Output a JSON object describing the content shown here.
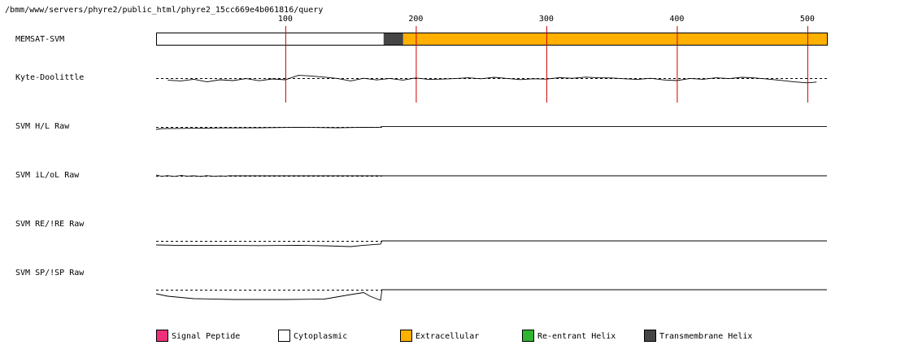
{
  "path_title": "/bmm/www/servers/phyre2/public_html/phyre2_15cc669e4b061816/query",
  "chart_data": {
    "type": "line",
    "title": "",
    "xlabel": "",
    "ylabel": "",
    "sequence_length": 515,
    "xlim": [
      1,
      515
    ],
    "tick_labels": [
      100,
      200,
      300,
      400,
      500
    ],
    "grid": true,
    "grid_color": "#cc0000",
    "tracks": [
      {
        "label": "MEMSAT-SVM",
        "kind": "topology",
        "segments": [
          {
            "start": 1,
            "end": 175,
            "class": "Cytoplasmic"
          },
          {
            "start": 175,
            "end": 190,
            "class": "Transmembrane Helix"
          },
          {
            "start": 190,
            "end": 515,
            "class": "Extracellular"
          }
        ]
      },
      {
        "label": "Kyte-Doolittle",
        "kind": "profile",
        "x_range": [
          10,
          507
        ],
        "points": [
          [
            10,
            2.6
          ],
          [
            20,
            3.4
          ],
          [
            30,
            1.4
          ],
          [
            40,
            4.6
          ],
          [
            50,
            2.0
          ],
          [
            60,
            3.0
          ],
          [
            70,
            0.6
          ],
          [
            80,
            3.2
          ],
          [
            90,
            1.0
          ],
          [
            100,
            2.0
          ],
          [
            110,
            -3.4
          ],
          [
            120,
            -2.6
          ],
          [
            130,
            -1.2
          ],
          [
            140,
            0.4
          ],
          [
            150,
            3.4
          ],
          [
            160,
            0.2
          ],
          [
            170,
            2.2
          ],
          [
            180,
            0.4
          ],
          [
            190,
            2.4
          ],
          [
            200,
            -0.2
          ],
          [
            210,
            1.6
          ],
          [
            220,
            1.2
          ],
          [
            230,
            0.6
          ],
          [
            240,
            -0.4
          ],
          [
            250,
            0.8
          ],
          [
            260,
            -1.0
          ],
          [
            270,
            0.4
          ],
          [
            280,
            1.8
          ],
          [
            290,
            0.8
          ],
          [
            300,
            1.2
          ],
          [
            310,
            -0.6
          ],
          [
            320,
            0.2
          ],
          [
            330,
            -1.2
          ],
          [
            340,
            -0.4
          ],
          [
            350,
            -0.2
          ],
          [
            360,
            0.8
          ],
          [
            370,
            1.6
          ],
          [
            380,
            0.2
          ],
          [
            390,
            2.2
          ],
          [
            400,
            3.0
          ],
          [
            410,
            0.4
          ],
          [
            420,
            1.4
          ],
          [
            430,
            -0.4
          ],
          [
            440,
            0.6
          ],
          [
            450,
            -1.0
          ],
          [
            460,
            -0.2
          ],
          [
            470,
            1.2
          ],
          [
            480,
            2.8
          ],
          [
            490,
            4.6
          ],
          [
            500,
            5.8
          ],
          [
            507,
            4.8
          ]
        ]
      },
      {
        "label": "SVM H/L Raw",
        "kind": "profile",
        "x_range": [
          1,
          515
        ],
        "points": [
          [
            1,
            3.0
          ],
          [
            5,
            2.0
          ],
          [
            20,
            1.8
          ],
          [
            50,
            1.2
          ],
          [
            80,
            1.0
          ],
          [
            110,
            0.4
          ],
          [
            140,
            1.0
          ],
          [
            160,
            0.4
          ],
          [
            172,
            0.6
          ],
          [
            174,
            -0.4
          ],
          [
            515,
            -0.4
          ]
        ]
      },
      {
        "label": "SVM iL/oL Raw",
        "kind": "profile",
        "x_range": [
          1,
          515
        ],
        "points": [
          [
            1,
            -1.0
          ],
          [
            5,
            0.6
          ],
          [
            10,
            -0.2
          ],
          [
            15,
            0.8
          ],
          [
            20,
            -0.4
          ],
          [
            25,
            0.4
          ],
          [
            30,
            0.0
          ],
          [
            35,
            0.8
          ],
          [
            40,
            -0.2
          ],
          [
            45,
            0.6
          ],
          [
            50,
            0.2
          ],
          [
            55,
            0.4
          ],
          [
            56,
            0.0
          ],
          [
            515,
            0.0
          ]
        ]
      },
      {
        "label": "SVM RE/!RE Raw",
        "kind": "profile",
        "x_range": [
          1,
          515
        ],
        "points": [
          [
            1,
            5.0
          ],
          [
            20,
            5.6
          ],
          [
            50,
            5.4
          ],
          [
            80,
            5.8
          ],
          [
            110,
            5.4
          ],
          [
            130,
            6.0
          ],
          [
            150,
            7.0
          ],
          [
            160,
            5.4
          ],
          [
            173,
            4.0
          ],
          [
            174,
            0.0
          ],
          [
            515,
            0.0
          ]
        ]
      },
      {
        "label": "SVM SP/!SP Raw",
        "kind": "profile",
        "x_range": [
          1,
          515
        ],
        "points": [
          [
            1,
            5.0
          ],
          [
            10,
            8.0
          ],
          [
            30,
            11.0
          ],
          [
            60,
            12.0
          ],
          [
            100,
            12.0
          ],
          [
            130,
            11.5
          ],
          [
            150,
            6.0
          ],
          [
            160,
            3.5
          ],
          [
            165,
            8.0
          ],
          [
            173,
            13.0
          ],
          [
            174,
            0.0
          ],
          [
            515,
            0.0
          ]
        ]
      }
    ]
  },
  "legend": [
    {
      "label": "Signal Peptide",
      "color": "#f0307a"
    },
    {
      "label": "Cytoplasmic",
      "color": "#ffffff"
    },
    {
      "label": "Extracellular",
      "color": "#ffb000"
    },
    {
      "label": "Re-entrant Helix",
      "color": "#2fb52f"
    },
    {
      "label": "Transmembrane Helix",
      "color": "#454545"
    }
  ]
}
